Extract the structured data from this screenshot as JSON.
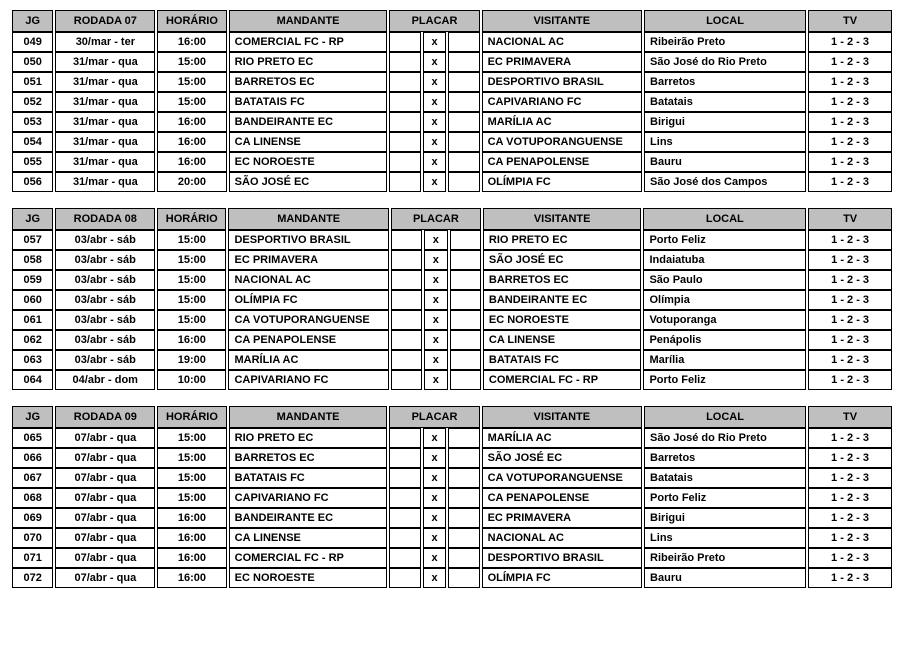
{
  "headers": {
    "jg": "JG",
    "horario": "HORÁRIO",
    "mandante": "MANDANTE",
    "placar": "PLACAR",
    "visitante": "VISITANTE",
    "local": "LOCAL",
    "tv": "TV"
  },
  "x": "x",
  "tv_value": "1 - 2 - 3",
  "rounds": [
    {
      "rodada": "RODADA 07",
      "games": [
        {
          "jg": "049",
          "date": "30/mar - ter",
          "time": "16:00",
          "home": "COMERCIAL FC - RP",
          "away": "NACIONAL AC",
          "local": "Ribeirão Preto"
        },
        {
          "jg": "050",
          "date": "31/mar - qua",
          "time": "15:00",
          "home": "RIO PRETO EC",
          "away": "EC PRIMAVERA",
          "local": "São José do Rio Preto"
        },
        {
          "jg": "051",
          "date": "31/mar - qua",
          "time": "15:00",
          "home": "BARRETOS EC",
          "away": "DESPORTIVO BRASIL",
          "local": "Barretos"
        },
        {
          "jg": "052",
          "date": "31/mar - qua",
          "time": "15:00",
          "home": "BATATAIS FC",
          "away": "CAPIVARIANO FC",
          "local": "Batatais"
        },
        {
          "jg": "053",
          "date": "31/mar - qua",
          "time": "16:00",
          "home": "BANDEIRANTE EC",
          "away": "MARÍLIA AC",
          "local": "Birigui"
        },
        {
          "jg": "054",
          "date": "31/mar - qua",
          "time": "16:00",
          "home": "CA LINENSE",
          "away": "CA VOTUPORANGUENSE",
          "local": "Lins"
        },
        {
          "jg": "055",
          "date": "31/mar - qua",
          "time": "16:00",
          "home": "EC NOROESTE",
          "away": "CA PENAPOLENSE",
          "local": "Bauru"
        },
        {
          "jg": "056",
          "date": "31/mar - qua",
          "time": "20:00",
          "home": "SÃO JOSÉ EC",
          "away": "OLÍMPIA FC",
          "local": "São José dos Campos"
        }
      ]
    },
    {
      "rodada": "RODADA 08",
      "games": [
        {
          "jg": "057",
          "date": "03/abr - sáb",
          "time": "15:00",
          "home": "DESPORTIVO BRASIL",
          "away": "RIO PRETO EC",
          "local": "Porto Feliz"
        },
        {
          "jg": "058",
          "date": "03/abr - sáb",
          "time": "15:00",
          "home": "EC PRIMAVERA",
          "away": "SÃO JOSÉ EC",
          "local": "Indaiatuba"
        },
        {
          "jg": "059",
          "date": "03/abr - sáb",
          "time": "15:00",
          "home": "NACIONAL AC",
          "away": "BARRETOS EC",
          "local": "São Paulo"
        },
        {
          "jg": "060",
          "date": "03/abr - sáb",
          "time": "15:00",
          "home": "OLÍMPIA FC",
          "away": "BANDEIRANTE EC",
          "local": "Olímpia"
        },
        {
          "jg": "061",
          "date": "03/abr - sáb",
          "time": "15:00",
          "home": "CA VOTUPORANGUENSE",
          "away": "EC NOROESTE",
          "local": "Votuporanga"
        },
        {
          "jg": "062",
          "date": "03/abr - sáb",
          "time": "16:00",
          "home": "CA PENAPOLENSE",
          "away": "CA LINENSE",
          "local": "Penápolis"
        },
        {
          "jg": "063",
          "date": "03/abr - sáb",
          "time": "19:00",
          "home": "MARÍLIA AC",
          "away": "BATATAIS FC",
          "local": "Marília"
        },
        {
          "jg": "064",
          "date": "04/abr - dom",
          "time": "10:00",
          "home": "CAPIVARIANO FC",
          "away": "COMERCIAL FC - RP",
          "local": "Porto Feliz"
        }
      ]
    },
    {
      "rodada": "RODADA 09",
      "games": [
        {
          "jg": "065",
          "date": "07/abr - qua",
          "time": "15:00",
          "home": "RIO PRETO EC",
          "away": "MARÍLIA AC",
          "local": "São José do Rio Preto"
        },
        {
          "jg": "066",
          "date": "07/abr - qua",
          "time": "15:00",
          "home": "BARRETOS EC",
          "away": "SÃO JOSÉ EC",
          "local": "Barretos"
        },
        {
          "jg": "067",
          "date": "07/abr - qua",
          "time": "15:00",
          "home": "BATATAIS FC",
          "away": "CA VOTUPORANGUENSE",
          "local": "Batatais"
        },
        {
          "jg": "068",
          "date": "07/abr - qua",
          "time": "15:00",
          "home": "CAPIVARIANO FC",
          "away": "CA PENAPOLENSE",
          "local": "Porto Feliz"
        },
        {
          "jg": "069",
          "date": "07/abr - qua",
          "time": "16:00",
          "home": "BANDEIRANTE EC",
          "away": "EC PRIMAVERA",
          "local": "Birigui"
        },
        {
          "jg": "070",
          "date": "07/abr - qua",
          "time": "16:00",
          "home": "CA LINENSE",
          "away": "NACIONAL AC",
          "local": "Lins"
        },
        {
          "jg": "071",
          "date": "07/abr - qua",
          "time": "16:00",
          "home": "COMERCIAL FC - RP",
          "away": "DESPORTIVO BRASIL",
          "local": "Ribeirão Preto"
        },
        {
          "jg": "072",
          "date": "07/abr - qua",
          "time": "16:00",
          "home": "EC NOROESTE",
          "away": "OLÍMPIA FC",
          "local": "Bauru"
        }
      ]
    }
  ]
}
